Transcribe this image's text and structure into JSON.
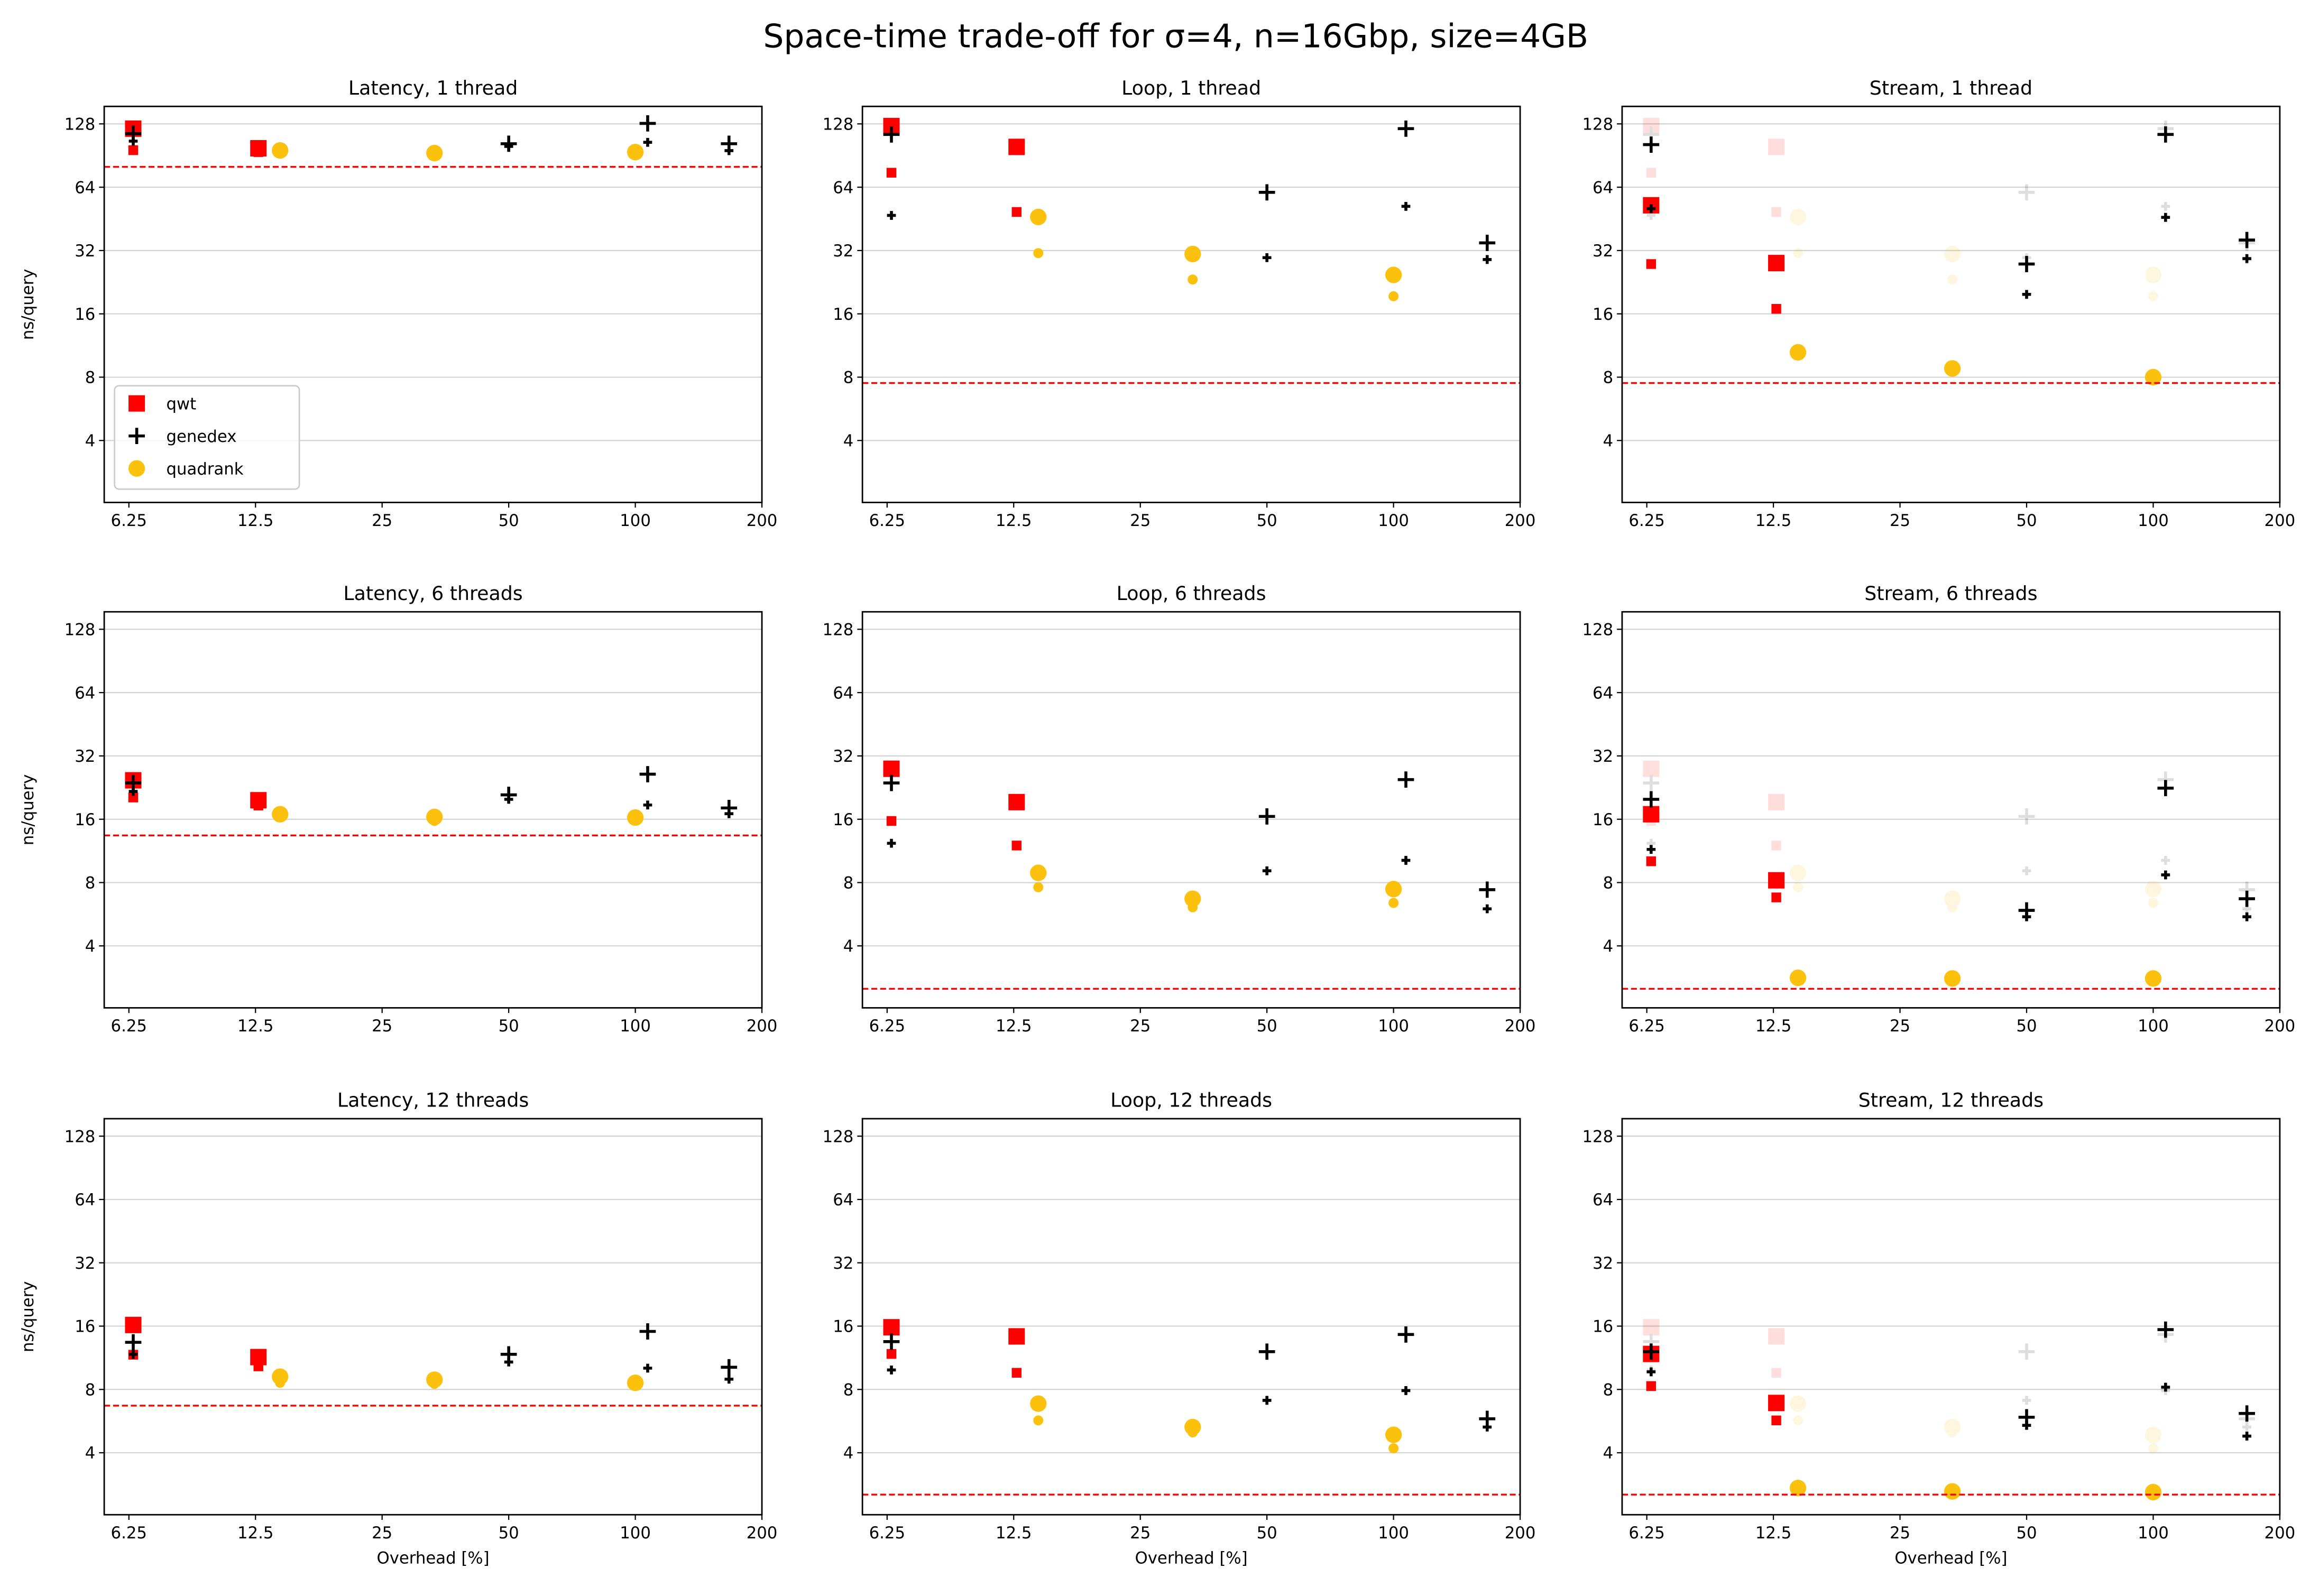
{
  "figure": {
    "title": "Space-time trade-off for σ=4, n=16Gbp, size=4GB",
    "legend": [
      {
        "name": "qwt",
        "color": "#ff0000",
        "marker": "square"
      },
      {
        "name": "genedex",
        "color": "#000000",
        "marker": "plus"
      },
      {
        "name": "quadrank",
        "color": "#fbc10c",
        "marker": "circle"
      }
    ],
    "legend_placement": "lower-left of first panel",
    "baseline_color": "#ff0000",
    "baseline_style": "dashed",
    "faded_overlay_note_visible": false
  },
  "chart_data": [
    {
      "type": "scatter",
      "title": "Latency, 1 thread",
      "xlabel": "",
      "ylabel": "ns/query",
      "xscale": "log",
      "yscale": "log2",
      "xlim": [
        5.46,
        200
      ],
      "ylim": [
        2.03,
        155
      ],
      "xticks": [
        "6.25",
        "12.5",
        "25",
        "50",
        "100",
        "200"
      ],
      "yticks": [
        "4",
        "8",
        "16",
        "32",
        "64",
        "128"
      ],
      "grid": "y",
      "baseline": 80,
      "legend": true,
      "series": [
        {
          "name": "qwt",
          "large": [
            [
              6.4,
              121.5
            ],
            [
              12.7,
              98
            ]
          ],
          "small": [
            [
              6.4,
              96
            ],
            [
              12.7,
              94
            ]
          ]
        },
        {
          "name": "genedex",
          "large": [
            [
              6.4,
              115
            ],
            [
              50,
              103
            ],
            [
              107,
              128.7
            ],
            [
              167,
              103
            ]
          ],
          "small": [
            [
              6.4,
              106
            ],
            [
              50,
              100
            ],
            [
              107,
              104.6
            ],
            [
              167,
              95.5
            ]
          ]
        },
        {
          "name": "quadrank",
          "large": [
            [
              14.3,
              95.7
            ],
            [
              33.3,
              93
            ],
            [
              100,
              94
            ]
          ],
          "small": [
            [
              14.3,
              93
            ],
            [
              33.3,
              91
            ],
            [
              100,
              92
            ]
          ]
        }
      ]
    },
    {
      "type": "scatter",
      "title": "Loop, 1 thread",
      "xlabel": "",
      "ylabel": "",
      "xscale": "log",
      "yscale": "log2",
      "xlim": [
        5.46,
        200
      ],
      "ylim": [
        2.03,
        155
      ],
      "xticks": [
        "6.25",
        "12.5",
        "25",
        "50",
        "100",
        "200"
      ],
      "yticks": [
        "4",
        "8",
        "16",
        "32",
        "64",
        "128"
      ],
      "grid": "y",
      "baseline": 7.5,
      "series": [
        {
          "name": "qwt",
          "large": [
            [
              6.4,
              125
            ],
            [
              12.7,
              99.5
            ]
          ],
          "small": [
            [
              6.4,
              75
            ],
            [
              12.7,
              48.8
            ]
          ]
        },
        {
          "name": "genedex",
          "large": [
            [
              6.4,
              114
            ],
            [
              50,
              60.5
            ],
            [
              107,
              121.5
            ],
            [
              167,
              34.8
            ]
          ],
          "small": [
            [
              6.4,
              47
            ],
            [
              50,
              29.6
            ],
            [
              107,
              51.9
            ],
            [
              167,
              29
            ]
          ]
        },
        {
          "name": "quadrank",
          "large": [
            [
              14.3,
              46.2
            ],
            [
              33.3,
              30.8
            ],
            [
              100,
              24.5
            ]
          ],
          "small": [
            [
              14.3,
              31.1
            ],
            [
              33.3,
              23.3
            ],
            [
              100,
              19.4
            ]
          ]
        }
      ]
    },
    {
      "type": "scatter",
      "title": "Stream, 1 thread",
      "xlabel": "",
      "ylabel": "",
      "xscale": "log",
      "yscale": "log2",
      "xlim": [
        5.46,
        200
      ],
      "ylim": [
        2.03,
        155
      ],
      "xticks": [
        "6.25",
        "12.5",
        "25",
        "50",
        "100",
        "200"
      ],
      "yticks": [
        "4",
        "8",
        "16",
        "32",
        "64",
        "128"
      ],
      "grid": "y",
      "baseline": 7.5,
      "faded_overlay": "Loop, 1 thread",
      "series": [
        {
          "name": "qwt",
          "large": [
            [
              6.4,
              52.5
            ],
            [
              12.7,
              27.9
            ]
          ],
          "small": [
            [
              6.4,
              27.6
            ],
            [
              12.7,
              16.9
            ]
          ]
        },
        {
          "name": "genedex",
          "large": [
            [
              6.4,
              102
            ],
            [
              50,
              27.6
            ],
            [
              107,
              114
            ],
            [
              167,
              35.9
            ]
          ],
          "small": [
            [
              6.4,
              50.6
            ],
            [
              50,
              19.8
            ],
            [
              107,
              46
            ],
            [
              167,
              29.3
            ]
          ]
        },
        {
          "name": "quadrank",
          "large": [
            [
              14.3,
              10.5
            ],
            [
              33.3,
              8.8
            ],
            [
              100,
              8.0
            ]
          ],
          "small": []
        }
      ]
    },
    {
      "type": "scatter",
      "title": "Latency, 6 threads",
      "xlabel": "",
      "ylabel": "ns/query",
      "xscale": "log",
      "yscale": "log2",
      "xlim": [
        5.46,
        200
      ],
      "ylim": [
        2.03,
        155
      ],
      "xticks": [
        "6.25",
        "12.5",
        "25",
        "50",
        "100",
        "200"
      ],
      "yticks": [
        "4",
        "8",
        "16",
        "32",
        "64",
        "128"
      ],
      "grid": "y",
      "baseline": 13.4,
      "series": [
        {
          "name": "qwt",
          "large": [
            [
              6.4,
              24.5
            ],
            [
              12.7,
              19.7
            ]
          ],
          "small": [
            [
              6.4,
              20.3
            ],
            [
              12.7,
              18.6
            ]
          ]
        },
        {
          "name": "genedex",
          "large": [
            [
              6.4,
              23.8
            ],
            [
              50,
              20.9
            ],
            [
              107,
              26.2
            ],
            [
              167,
              18.1
            ]
          ],
          "small": [
            [
              6.4,
              21.7
            ],
            [
              50,
              19.9
            ],
            [
              107,
              18.7
            ],
            [
              167,
              17.0
            ]
          ]
        },
        {
          "name": "quadrank",
          "large": [
            [
              14.3,
              16.9
            ],
            [
              33.3,
              16.4
            ],
            [
              100,
              16.3
            ]
          ],
          "small": [
            [
              14.3,
              16.4
            ],
            [
              33.3,
              15.7
            ],
            [
              100,
              16.0
            ]
          ]
        }
      ]
    },
    {
      "type": "scatter",
      "title": "Loop, 6 threads",
      "xlabel": "",
      "ylabel": "",
      "xscale": "log",
      "yscale": "log2",
      "xlim": [
        5.46,
        200
      ],
      "ylim": [
        2.03,
        155
      ],
      "xticks": [
        "6.25",
        "12.5",
        "25",
        "50",
        "100",
        "200"
      ],
      "yticks": [
        "4",
        "8",
        "16",
        "32",
        "64",
        "128"
      ],
      "grid": "y",
      "baseline": 2.5,
      "series": [
        {
          "name": "qwt",
          "large": [
            [
              6.4,
              27.8
            ],
            [
              12.7,
              19.3
            ]
          ],
          "small": [
            [
              6.4,
              15.7
            ],
            [
              12.7,
              12.0
            ]
          ]
        },
        {
          "name": "genedex",
          "large": [
            [
              6.4,
              23.8
            ],
            [
              50,
              16.5
            ],
            [
              107,
              24.7
            ],
            [
              167,
              7.4
            ]
          ],
          "small": [
            [
              6.4,
              12.3
            ],
            [
              50,
              9.1
            ],
            [
              107,
              10.2
            ],
            [
              167,
              6.0
            ]
          ]
        },
        {
          "name": "quadrank",
          "large": [
            [
              14.3,
              8.9
            ],
            [
              33.3,
              6.7
            ],
            [
              100,
              7.45
            ]
          ],
          "small": [
            [
              14.3,
              7.6
            ],
            [
              33.3,
              6.1
            ],
            [
              100,
              6.4
            ]
          ]
        }
      ]
    },
    {
      "type": "scatter",
      "title": "Stream, 6 threads",
      "xlabel": "",
      "ylabel": "",
      "xscale": "log",
      "yscale": "log2",
      "xlim": [
        5.46,
        200
      ],
      "ylim": [
        2.03,
        155
      ],
      "xticks": [
        "6.25",
        "12.5",
        "25",
        "50",
        "100",
        "200"
      ],
      "yticks": [
        "4",
        "8",
        "16",
        "32",
        "64",
        "128"
      ],
      "grid": "y",
      "baseline": 2.5,
      "faded_overlay": "Loop, 6 threads",
      "series": [
        {
          "name": "qwt",
          "large": [
            [
              6.4,
              16.9
            ],
            [
              12.7,
              8.2
            ]
          ],
          "small": [
            [
              6.4,
              10.1
            ],
            [
              12.7,
              6.8
            ]
          ]
        },
        {
          "name": "genedex",
          "large": [
            [
              6.4,
              19.9
            ],
            [
              50,
              5.9
            ],
            [
              107,
              22.5
            ],
            [
              167,
              6.7
            ]
          ],
          "small": [
            [
              6.4,
              11.5
            ],
            [
              50,
              5.5
            ],
            [
              107,
              8.7
            ],
            [
              167,
              5.5
            ]
          ]
        },
        {
          "name": "quadrank",
          "large": [
            [
              14.3,
              2.82
            ],
            [
              33.3,
              2.8
            ],
            [
              100,
              2.8
            ]
          ],
          "small": []
        }
      ]
    },
    {
      "type": "scatter",
      "title": "Latency, 12 threads",
      "xlabel": "Overhead [%]",
      "ylabel": "ns/query",
      "xscale": "log",
      "yscale": "log2",
      "xlim": [
        5.46,
        200
      ],
      "ylim": [
        2.03,
        155
      ],
      "xticks": [
        "6.25",
        "12.5",
        "25",
        "50",
        "100",
        "200"
      ],
      "yticks": [
        "4",
        "8",
        "16",
        "32",
        "64",
        "128"
      ],
      "grid": "y",
      "baseline": 6.7,
      "series": [
        {
          "name": "qwt",
          "large": [
            [
              6.4,
              16.2
            ],
            [
              12.7,
              11.4
            ]
          ],
          "small": [
            [
              6.4,
              11.7
            ],
            [
              12.7,
              10.3
            ]
          ]
        },
        {
          "name": "genedex",
          "large": [
            [
              6.4,
              13.4
            ],
            [
              50,
              11.75
            ],
            [
              107,
              15.1
            ],
            [
              167,
              10.2
            ]
          ],
          "small": [
            [
              6.4,
              11.75
            ],
            [
              50,
              10.8
            ],
            [
              107,
              10.1
            ],
            [
              167,
              8.95
            ]
          ]
        },
        {
          "name": "quadrank",
          "large": [
            [
              14.3,
              9.2
            ],
            [
              33.3,
              8.9
            ],
            [
              100,
              8.6
            ]
          ],
          "small": [
            [
              14.3,
              8.6
            ],
            [
              33.3,
              8.5
            ],
            [
              100,
              8.5
            ]
          ]
        }
      ]
    },
    {
      "type": "scatter",
      "title": "Loop, 12 threads",
      "xlabel": "Overhead [%]",
      "ylabel": "",
      "xscale": "log",
      "yscale": "log2",
      "xlim": [
        5.46,
        200
      ],
      "ylim": [
        2.03,
        155
      ],
      "xticks": [
        "6.25",
        "12.5",
        "25",
        "50",
        "100",
        "200"
      ],
      "yticks": [
        "4",
        "8",
        "16",
        "32",
        "64",
        "128"
      ],
      "grid": "y",
      "baseline": 2.53,
      "series": [
        {
          "name": "qwt",
          "large": [
            [
              6.4,
              15.8
            ],
            [
              12.7,
              14.3
            ]
          ],
          "small": [
            [
              6.4,
              11.8
            ],
            [
              12.7,
              9.6
            ]
          ]
        },
        {
          "name": "genedex",
          "large": [
            [
              6.4,
              13.5
            ],
            [
              50,
              12.1
            ],
            [
              107,
              14.6
            ],
            [
              167,
              5.8
            ]
          ],
          "small": [
            [
              6.4,
              9.9
            ],
            [
              50,
              7.1
            ],
            [
              107,
              7.9
            ],
            [
              167,
              5.3
            ]
          ]
        },
        {
          "name": "quadrank",
          "large": [
            [
              14.3,
              6.85
            ],
            [
              33.3,
              5.3
            ],
            [
              100,
              4.87
            ]
          ],
          "small": [
            [
              14.3,
              5.7
            ],
            [
              33.3,
              5.0
            ],
            [
              100,
              4.2
            ]
          ]
        }
      ]
    },
    {
      "type": "scatter",
      "title": "Stream, 12 threads",
      "xlabel": "Overhead [%]",
      "ylabel": "",
      "xscale": "log",
      "yscale": "log2",
      "xlim": [
        5.46,
        200
      ],
      "ylim": [
        2.03,
        155
      ],
      "xticks": [
        "6.25",
        "12.5",
        "25",
        "50",
        "100",
        "200"
      ],
      "yticks": [
        "4",
        "8",
        "16",
        "32",
        "64",
        "128"
      ],
      "grid": "y",
      "baseline": 2.53,
      "faded_overlay": "Loop, 12 threads",
      "series": [
        {
          "name": "qwt",
          "large": [
            [
              6.4,
              11.8
            ],
            [
              12.7,
              6.9
            ]
          ],
          "small": [
            [
              6.4,
              8.3
            ],
            [
              12.7,
              5.7
            ]
          ]
        },
        {
          "name": "genedex",
          "large": [
            [
              6.4,
              12.1
            ],
            [
              50,
              5.9
            ],
            [
              107,
              15.4
            ],
            [
              167,
              6.15
            ]
          ],
          "small": [
            [
              6.4,
              9.7
            ],
            [
              50,
              5.4
            ],
            [
              107,
              8.2
            ],
            [
              167,
              4.8
            ]
          ]
        },
        {
          "name": "quadrank",
          "large": [
            [
              14.3,
              2.72
            ],
            [
              33.3,
              2.62
            ],
            [
              100,
              2.6
            ]
          ],
          "small": []
        }
      ]
    }
  ]
}
